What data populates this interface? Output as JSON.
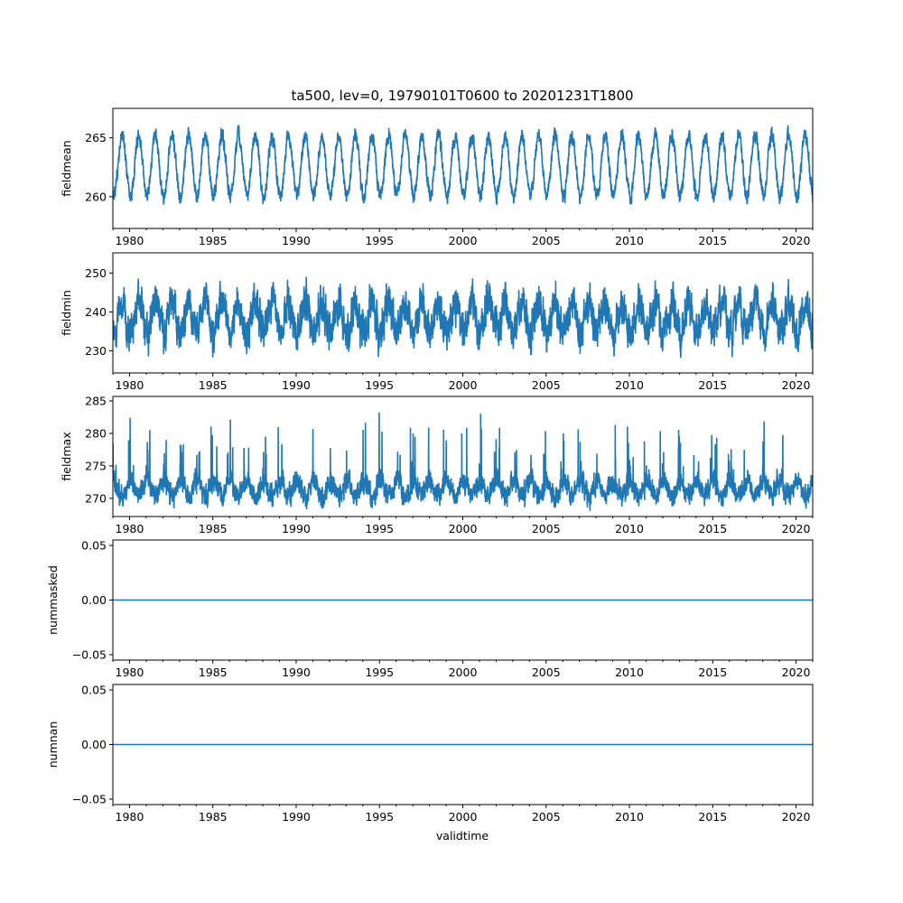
{
  "chart_data": {
    "type": "line",
    "title": "ta500, lev=0, 19790101T0600 to 20201231T1800",
    "xlabel": "validtime",
    "xlim": [
      1979.0,
      2021.0
    ],
    "x_ticks": [
      1980,
      1985,
      1990,
      1995,
      2000,
      2005,
      2010,
      2015,
      2020
    ],
    "x_tick_labels": [
      "1980",
      "1985",
      "1990",
      "1995",
      "2000",
      "2005",
      "2010",
      "2015",
      "2020"
    ],
    "line_color": "#1f77b4",
    "grid": false,
    "legend": "none",
    "panels": [
      {
        "ylabel": "fieldmean",
        "ylim": [
          257.3,
          267.5
        ],
        "y_ticks": [
          260,
          265
        ],
        "y_tick_labels": [
          "260",
          "265"
        ],
        "series": {
          "kind": "seasonal",
          "x_start": 1979.0,
          "x_end": 2021.0,
          "samples_per_year": 120,
          "baseline": 262.6,
          "annual_amplitude": 2.6,
          "peak_phase_year": 0.55,
          "noise": 0.45,
          "min_observed": 257.7,
          "max_observed": 267.0
        }
      },
      {
        "ylabel": "fieldmin",
        "ylim": [
          224.3,
          255.2
        ],
        "y_ticks": [
          230,
          240,
          250
        ],
        "y_tick_labels": [
          "230",
          "240",
          "250"
        ],
        "series": {
          "kind": "seasonal",
          "x_start": 1979.0,
          "x_end": 2021.0,
          "samples_per_year": 120,
          "baseline": 238.5,
          "annual_amplitude": 4.0,
          "peak_phase_year": 0.55,
          "noise": 3.5,
          "min_observed": 225.8,
          "max_observed": 253.8
        }
      },
      {
        "ylabel": "fieldmax",
        "ylim": [
          267.2,
          285.7
        ],
        "y_ticks": [
          270,
          275,
          280,
          285
        ],
        "y_tick_labels": [
          "270",
          "275",
          "280",
          "285"
        ],
        "series": {
          "kind": "seasonal",
          "x_start": 1979.0,
          "x_end": 2021.0,
          "samples_per_year": 120,
          "baseline": 271.5,
          "annual_amplitude": 1.2,
          "peak_phase_year": 0.05,
          "noise": 1.2,
          "min_observed": 268.0,
          "max_observed": 284.8
        }
      },
      {
        "ylabel": "nummasked",
        "ylim": [
          -0.055,
          0.055
        ],
        "y_ticks": [
          -0.05,
          0.0,
          0.05
        ],
        "y_tick_labels": [
          "−0.05",
          "0.00",
          "0.05"
        ],
        "series": {
          "kind": "constant",
          "x_start": 1979.0,
          "x_end": 2021.0,
          "value": 0.0
        }
      },
      {
        "ylabel": "numnan",
        "ylim": [
          -0.055,
          0.055
        ],
        "y_ticks": [
          -0.05,
          0.0,
          0.05
        ],
        "y_tick_labels": [
          "−0.05",
          "0.00",
          "0.05"
        ],
        "series": {
          "kind": "constant",
          "x_start": 1979.0,
          "x_end": 2021.0,
          "value": 0.0
        }
      }
    ]
  }
}
